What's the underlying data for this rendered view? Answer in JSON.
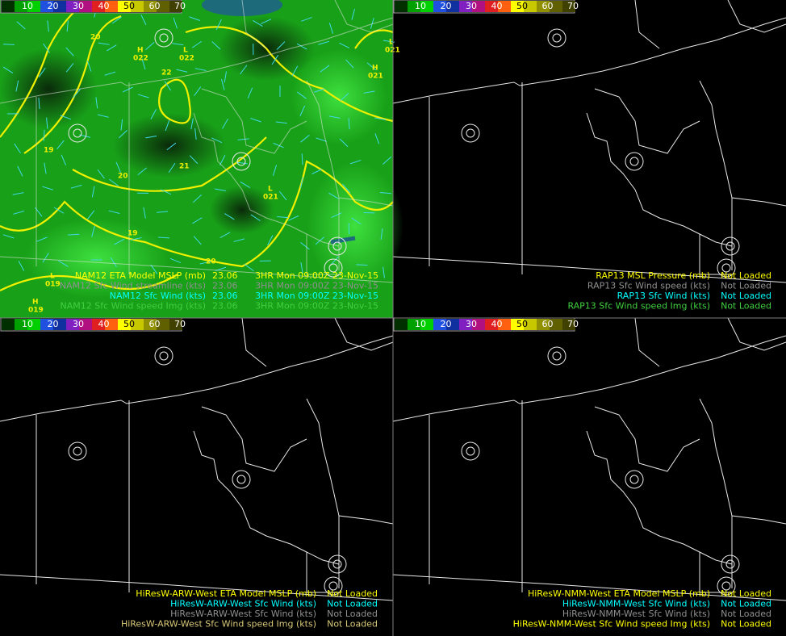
{
  "colorbar": {
    "ticks": [
      10,
      20,
      30,
      40,
      50,
      60,
      70
    ]
  },
  "panels": [
    {
      "legend": [
        {
          "name": "NAM12 ETA Model MSLP (mb)",
          "time": "23.06",
          "valid": "3HR Mon 09:00Z 23-Nov-15",
          "color": "#ffff00"
        },
        {
          "name": "NAM12 Sfc Wind streamline (kts)",
          "time": "23.06",
          "valid": "3HR Mon 09:00Z 23-Nov-15",
          "color": "#909090"
        },
        {
          "name": "NAM12 Sfc Wind (kts)",
          "time": "23.06",
          "valid": "3HR Mon 09:00Z 23-Nov-15",
          "color": "#00ffff"
        },
        {
          "name": "NAM12 Sfc Wind speed Img (kts)",
          "time": "23.06",
          "valid": "3HR Mon 09:00Z 23-Nov-15",
          "color": "#40d040"
        }
      ]
    },
    {
      "legend": [
        {
          "name": "RAP13 MSL Pressure (mb)",
          "status": "Not Loaded",
          "color": "#ffff00"
        },
        {
          "name": "RAP13 Sfc Wind speed (kts)",
          "status": "Not Loaded",
          "color": "#909090"
        },
        {
          "name": "RAP13 Sfc Wind (kts)",
          "status": "Not Loaded",
          "color": "#00ffff"
        },
        {
          "name": "RAP13 Sfc Wind speed Img (kts)",
          "status": "Not Loaded",
          "color": "#40d040"
        }
      ]
    },
    {
      "legend": [
        {
          "name": "HiResW-ARW-West ETA Model MSLP (mb)",
          "status": "Not Loaded",
          "color": "#ffff00"
        },
        {
          "name": "HiResW-ARW-West Sfc Wind (kts)",
          "status": "Not Loaded",
          "color": "#00ffff"
        },
        {
          "name": "HiResW-ARW-West Sfc Wind (kts)",
          "status": "Not Loaded",
          "color": "#909090"
        },
        {
          "name": "HiResW-ARW-West Sfc Wind speed Img (kts)",
          "status": "Not Loaded",
          "color": "#d8c878"
        }
      ]
    },
    {
      "legend": [
        {
          "name": "HiResW-NMM-West ETA Model MSLP (mb)",
          "status": "Not Loaded",
          "color": "#ffff00"
        },
        {
          "name": "HiResW-NMM-West Sfc Wind (kts)",
          "status": "Not Loaded",
          "color": "#00ffff"
        },
        {
          "name": "HiResW-NMM-West Sfc Wind (kts)",
          "status": "Not Loaded",
          "color": "#909090"
        },
        {
          "name": "HiResW-NMM-West Sfc Wind speed Img (kts)",
          "status": "Not Loaded",
          "color": "#ffff00"
        }
      ]
    }
  ],
  "map_labels": [
    "H",
    "022",
    "L",
    "022",
    "L",
    "021",
    "H",
    "021",
    "L",
    "021",
    "20",
    "22",
    "21",
    "20",
    "19",
    "19",
    "20",
    "H",
    "019",
    "L",
    "019"
  ]
}
